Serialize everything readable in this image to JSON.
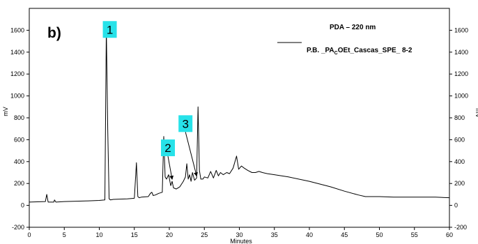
{
  "chart_data": {
    "type": "line",
    "panel_label": "b)",
    "xlabel": "Minutes",
    "ylabel_left": "mV",
    "ylabel_right": "mV",
    "xlim": [
      0,
      60
    ],
    "ylim": [
      -200,
      1800
    ],
    "x_ticks": [
      0,
      5,
      10,
      15,
      20,
      25,
      30,
      35,
      40,
      45,
      50,
      55,
      60
    ],
    "y_ticks": [
      -200,
      0,
      200,
      400,
      600,
      800,
      1000,
      1200,
      1400,
      1600
    ],
    "legend": {
      "line1": "PDA – 220 nm",
      "line2_prefix": "P.B. _PA",
      "line2_sub": "C",
      "line2_suffix": "OEt_Cascas_SPE_ 8-2"
    },
    "series": [
      {
        "name": "P.B. _PACOEt_Cascas_SPE_ 8-2",
        "color": "#000000",
        "x": [
          0,
          2.3,
          2.5,
          2.7,
          3.5,
          3.6,
          3.8,
          5,
          8,
          10,
          10.8,
          11.0,
          11.2,
          11.4,
          11.6,
          12,
          14,
          15.0,
          15.3,
          15.5,
          15.7,
          16,
          17.0,
          17.3,
          17.5,
          17.7,
          18,
          18.5,
          19.0,
          19.2,
          19.4,
          19.6,
          19.9,
          20.2,
          20.4,
          20.6,
          21,
          21.5,
          22,
          22.3,
          22.5,
          22.7,
          22.9,
          23.1,
          23.3,
          23.6,
          23.9,
          24.1,
          24.3,
          24.5,
          24.8,
          25.0,
          25.5,
          25.9,
          26.3,
          26.7,
          27.0,
          27.3,
          27.7,
          28.2,
          28.6,
          29.1,
          29.6,
          29.9,
          30.3,
          30.7,
          31.2,
          31.8,
          32.3,
          32.8,
          33.3,
          34,
          35,
          37,
          40,
          43,
          45,
          47,
          48,
          50,
          52,
          55,
          58,
          60
        ],
        "y": [
          30,
          35,
          100,
          30,
          30,
          50,
          30,
          35,
          40,
          45,
          50,
          1620,
          700,
          60,
          50,
          55,
          60,
          65,
          390,
          80,
          70,
          75,
          80,
          110,
          120,
          90,
          95,
          110,
          120,
          630,
          260,
          240,
          280,
          180,
          220,
          160,
          150,
          170,
          220,
          260,
          380,
          240,
          280,
          220,
          300,
          230,
          250,
          900,
          320,
          240,
          240,
          260,
          250,
          310,
          250,
          320,
          270,
          300,
          280,
          300,
          290,
          340,
          450,
          330,
          360,
          340,
          320,
          300,
          300,
          310,
          300,
          290,
          280,
          260,
          220,
          170,
          130,
          95,
          80,
          80,
          75,
          75,
          75,
          70
        ]
      }
    ],
    "callouts": [
      {
        "label": "1",
        "x": 11.2,
        "y": 1620
      },
      {
        "label": "2",
        "x": 20.4,
        "y": 220
      },
      {
        "label": "3",
        "x": 23.9,
        "y": 250
      }
    ],
    "colors": {
      "callout_fill": "#27e2e9",
      "line": "#000000"
    }
  }
}
